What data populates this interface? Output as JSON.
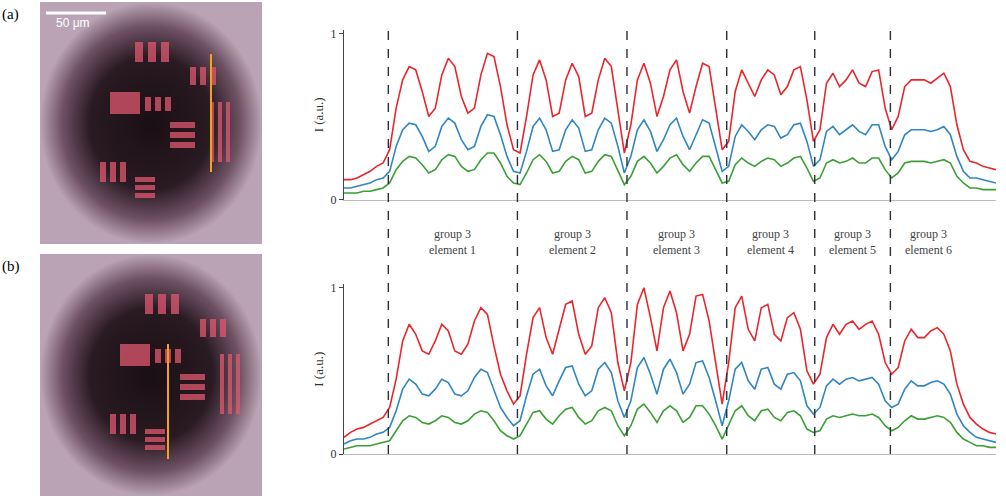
{
  "figure": {
    "scale_bar": "50 μm"
  },
  "region_labels": [
    "group 3\nelement 1",
    "group 3\nelement 2",
    "group 3\nelement 3",
    "group 3\nelement 4",
    "group 3\nelement 5",
    "group 3\nelement 6"
  ],
  "dividers": [
    6.8,
    26.6,
    43.4,
    58.7,
    72.2,
    83.8
  ],
  "chart_data": [
    {
      "type": "line",
      "panel_label": "(a)",
      "y_label": "I (a.u.)",
      "xlim": [
        0,
        100
      ],
      "ylim": [
        0,
        1.02
      ],
      "yticks": [
        0,
        1
      ],
      "tick_labels": "y",
      "grid": false,
      "x": [
        0,
        1,
        2,
        3,
        4,
        5,
        6,
        7,
        8,
        9,
        10,
        11,
        12,
        13,
        14,
        15,
        16,
        17,
        18,
        19,
        20,
        21,
        22,
        23,
        24,
        25,
        26,
        27,
        28,
        29,
        30,
        31,
        32,
        33,
        34,
        35,
        36,
        37,
        38,
        39,
        40,
        41,
        42,
        43,
        44,
        45,
        46,
        47,
        48,
        49,
        50,
        51,
        52,
        53,
        54,
        55,
        56,
        57,
        58,
        59,
        60,
        61,
        62,
        63,
        64,
        65,
        66,
        67,
        68,
        69,
        70,
        71,
        72,
        73,
        74,
        75,
        76,
        77,
        78,
        79,
        80,
        81,
        82,
        83,
        84,
        85,
        86,
        87,
        88,
        89,
        90,
        91,
        92,
        93,
        94,
        95,
        96,
        97,
        98,
        99,
        100
      ],
      "series": [
        {
          "color": "#e8262b",
          "values": [
            0.12,
            0.12,
            0.13,
            0.15,
            0.17,
            0.2,
            0.22,
            0.3,
            0.55,
            0.72,
            0.8,
            0.78,
            0.65,
            0.5,
            0.55,
            0.75,
            0.85,
            0.8,
            0.62,
            0.52,
            0.55,
            0.75,
            0.88,
            0.86,
            0.68,
            0.45,
            0.3,
            0.28,
            0.5,
            0.75,
            0.84,
            0.72,
            0.5,
            0.52,
            0.72,
            0.82,
            0.74,
            0.5,
            0.52,
            0.72,
            0.85,
            0.8,
            0.55,
            0.28,
            0.45,
            0.72,
            0.82,
            0.7,
            0.5,
            0.62,
            0.78,
            0.84,
            0.65,
            0.52,
            0.68,
            0.82,
            0.8,
            0.55,
            0.3,
            0.35,
            0.65,
            0.78,
            0.7,
            0.62,
            0.72,
            0.78,
            0.75,
            0.63,
            0.68,
            0.78,
            0.8,
            0.6,
            0.35,
            0.42,
            0.7,
            0.76,
            0.68,
            0.72,
            0.78,
            0.7,
            0.68,
            0.77,
            0.78,
            0.55,
            0.42,
            0.5,
            0.68,
            0.72,
            0.72,
            0.72,
            0.7,
            0.73,
            0.76,
            0.68,
            0.45,
            0.3,
            0.23,
            0.22,
            0.2,
            0.19,
            0.18
          ]
        },
        {
          "color": "#2f86c0",
          "values": [
            0.07,
            0.07,
            0.08,
            0.09,
            0.1,
            0.12,
            0.13,
            0.17,
            0.32,
            0.42,
            0.46,
            0.45,
            0.38,
            0.29,
            0.32,
            0.44,
            0.49,
            0.46,
            0.36,
            0.3,
            0.32,
            0.44,
            0.51,
            0.5,
            0.39,
            0.26,
            0.17,
            0.16,
            0.29,
            0.44,
            0.49,
            0.42,
            0.29,
            0.3,
            0.42,
            0.48,
            0.43,
            0.29,
            0.3,
            0.42,
            0.49,
            0.46,
            0.32,
            0.16,
            0.26,
            0.42,
            0.48,
            0.41,
            0.29,
            0.36,
            0.45,
            0.49,
            0.38,
            0.3,
            0.39,
            0.48,
            0.46,
            0.32,
            0.17,
            0.2,
            0.38,
            0.45,
            0.41,
            0.36,
            0.42,
            0.45,
            0.44,
            0.37,
            0.39,
            0.45,
            0.46,
            0.35,
            0.2,
            0.24,
            0.41,
            0.44,
            0.39,
            0.42,
            0.45,
            0.41,
            0.39,
            0.45,
            0.45,
            0.32,
            0.24,
            0.29,
            0.39,
            0.42,
            0.42,
            0.42,
            0.41,
            0.42,
            0.44,
            0.39,
            0.26,
            0.17,
            0.13,
            0.13,
            0.12,
            0.11,
            0.1
          ]
        },
        {
          "color": "#3aa035",
          "values": [
            0.04,
            0.04,
            0.04,
            0.05,
            0.05,
            0.06,
            0.07,
            0.1,
            0.18,
            0.23,
            0.26,
            0.25,
            0.21,
            0.16,
            0.18,
            0.24,
            0.27,
            0.26,
            0.2,
            0.17,
            0.18,
            0.24,
            0.28,
            0.28,
            0.22,
            0.14,
            0.1,
            0.09,
            0.16,
            0.24,
            0.27,
            0.23,
            0.16,
            0.17,
            0.23,
            0.26,
            0.24,
            0.16,
            0.17,
            0.23,
            0.27,
            0.26,
            0.18,
            0.09,
            0.14,
            0.23,
            0.26,
            0.22,
            0.16,
            0.2,
            0.25,
            0.27,
            0.21,
            0.17,
            0.22,
            0.26,
            0.26,
            0.18,
            0.1,
            0.11,
            0.21,
            0.25,
            0.22,
            0.2,
            0.23,
            0.25,
            0.24,
            0.2,
            0.22,
            0.25,
            0.26,
            0.19,
            0.11,
            0.13,
            0.22,
            0.24,
            0.22,
            0.23,
            0.25,
            0.22,
            0.22,
            0.25,
            0.25,
            0.18,
            0.13,
            0.16,
            0.22,
            0.23,
            0.23,
            0.23,
            0.22,
            0.23,
            0.24,
            0.22,
            0.14,
            0.1,
            0.07,
            0.07,
            0.06,
            0.06,
            0.06
          ]
        }
      ]
    },
    {
      "type": "line",
      "panel_label": "(b)",
      "y_label": "I (a.u.)",
      "xlim": [
        0,
        100
      ],
      "ylim": [
        0,
        1.02
      ],
      "yticks": [
        0,
        1
      ],
      "tick_labels": "y",
      "grid": false,
      "x": [
        0,
        1,
        2,
        3,
        4,
        5,
        6,
        7,
        8,
        9,
        10,
        11,
        12,
        13,
        14,
        15,
        16,
        17,
        18,
        19,
        20,
        21,
        22,
        23,
        24,
        25,
        26,
        27,
        28,
        29,
        30,
        31,
        32,
        33,
        34,
        35,
        36,
        37,
        38,
        39,
        40,
        41,
        42,
        43,
        44,
        45,
        46,
        47,
        48,
        49,
        50,
        51,
        52,
        53,
        54,
        55,
        56,
        57,
        58,
        59,
        60,
        61,
        62,
        63,
        64,
        65,
        66,
        67,
        68,
        69,
        70,
        71,
        72,
        73,
        74,
        75,
        76,
        77,
        78,
        79,
        80,
        81,
        82,
        83,
        84,
        85,
        86,
        87,
        88,
        89,
        90,
        91,
        92,
        93,
        94,
        95,
        96,
        97,
        98,
        99,
        100
      ],
      "series": [
        {
          "color": "#e8262b",
          "values": [
            0.1,
            0.13,
            0.15,
            0.16,
            0.18,
            0.2,
            0.22,
            0.28,
            0.45,
            0.68,
            0.78,
            0.72,
            0.62,
            0.6,
            0.68,
            0.78,
            0.74,
            0.62,
            0.6,
            0.66,
            0.8,
            0.88,
            0.84,
            0.65,
            0.48,
            0.38,
            0.3,
            0.35,
            0.6,
            0.82,
            0.88,
            0.7,
            0.6,
            0.75,
            0.9,
            0.92,
            0.72,
            0.6,
            0.65,
            0.88,
            0.94,
            0.85,
            0.55,
            0.38,
            0.55,
            0.9,
            1.0,
            0.82,
            0.62,
            0.88,
            0.98,
            0.85,
            0.62,
            0.72,
            0.95,
            0.96,
            0.8,
            0.55,
            0.3,
            0.55,
            0.88,
            0.95,
            0.75,
            0.68,
            0.88,
            0.9,
            0.72,
            0.68,
            0.82,
            0.85,
            0.75,
            0.5,
            0.42,
            0.48,
            0.7,
            0.78,
            0.72,
            0.78,
            0.8,
            0.75,
            0.78,
            0.8,
            0.72,
            0.55,
            0.48,
            0.52,
            0.68,
            0.75,
            0.7,
            0.7,
            0.74,
            0.76,
            0.72,
            0.62,
            0.42,
            0.3,
            0.22,
            0.18,
            0.15,
            0.13,
            0.12
          ]
        },
        {
          "color": "#2f86c0",
          "values": [
            0.06,
            0.08,
            0.09,
            0.09,
            0.1,
            0.12,
            0.13,
            0.16,
            0.26,
            0.39,
            0.45,
            0.42,
            0.36,
            0.35,
            0.39,
            0.45,
            0.43,
            0.36,
            0.35,
            0.38,
            0.46,
            0.51,
            0.49,
            0.38,
            0.28,
            0.22,
            0.17,
            0.2,
            0.35,
            0.48,
            0.51,
            0.41,
            0.35,
            0.44,
            0.52,
            0.53,
            0.42,
            0.35,
            0.38,
            0.51,
            0.55,
            0.49,
            0.32,
            0.22,
            0.32,
            0.52,
            0.58,
            0.48,
            0.36,
            0.51,
            0.57,
            0.49,
            0.36,
            0.42,
            0.55,
            0.56,
            0.46,
            0.32,
            0.17,
            0.32,
            0.51,
            0.55,
            0.44,
            0.39,
            0.51,
            0.52,
            0.42,
            0.39,
            0.48,
            0.49,
            0.44,
            0.29,
            0.24,
            0.28,
            0.41,
            0.45,
            0.42,
            0.45,
            0.46,
            0.44,
            0.45,
            0.46,
            0.42,
            0.32,
            0.28,
            0.3,
            0.39,
            0.44,
            0.41,
            0.41,
            0.43,
            0.44,
            0.42,
            0.36,
            0.24,
            0.17,
            0.13,
            0.1,
            0.09,
            0.08,
            0.07
          ]
        },
        {
          "color": "#3aa035",
          "values": [
            0.03,
            0.04,
            0.05,
            0.05,
            0.05,
            0.06,
            0.07,
            0.08,
            0.14,
            0.2,
            0.23,
            0.22,
            0.19,
            0.18,
            0.2,
            0.23,
            0.22,
            0.19,
            0.18,
            0.2,
            0.24,
            0.26,
            0.25,
            0.2,
            0.14,
            0.11,
            0.09,
            0.11,
            0.18,
            0.25,
            0.26,
            0.21,
            0.18,
            0.23,
            0.27,
            0.28,
            0.22,
            0.18,
            0.2,
            0.26,
            0.28,
            0.26,
            0.17,
            0.11,
            0.17,
            0.27,
            0.3,
            0.25,
            0.19,
            0.26,
            0.29,
            0.26,
            0.19,
            0.22,
            0.29,
            0.29,
            0.24,
            0.17,
            0.09,
            0.17,
            0.26,
            0.29,
            0.23,
            0.2,
            0.26,
            0.27,
            0.22,
            0.2,
            0.25,
            0.26,
            0.23,
            0.15,
            0.13,
            0.14,
            0.21,
            0.23,
            0.22,
            0.23,
            0.24,
            0.23,
            0.23,
            0.24,
            0.22,
            0.17,
            0.14,
            0.16,
            0.2,
            0.23,
            0.21,
            0.21,
            0.22,
            0.23,
            0.22,
            0.19,
            0.13,
            0.09,
            0.07,
            0.05,
            0.05,
            0.04,
            0.04
          ]
        }
      ]
    }
  ]
}
